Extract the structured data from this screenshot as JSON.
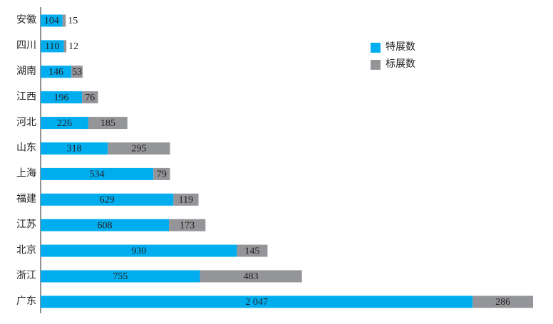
{
  "chart_data": {
    "type": "stacked-bar-horizontal",
    "categories": [
      "安徽",
      "四川",
      "湖南",
      "江西",
      "河北",
      "山东",
      "上海",
      "福建",
      "江苏",
      "北京",
      "浙江",
      "广东"
    ],
    "series": [
      {
        "name": "特展数",
        "color": "#00aeef",
        "values": [
          104,
          110,
          146,
          196,
          226,
          318,
          534,
          629,
          608,
          930,
          755,
          2047
        ],
        "value_labels": [
          "104",
          "110",
          "146",
          "196",
          "226",
          "318",
          "534",
          "629",
          "608",
          "930",
          "755",
          "2 047"
        ]
      },
      {
        "name": "标展数",
        "color": "#939598",
        "values": [
          15,
          12,
          53,
          76,
          185,
          295,
          79,
          119,
          173,
          145,
          483,
          286
        ]
      }
    ],
    "legend": "upper right"
  }
}
